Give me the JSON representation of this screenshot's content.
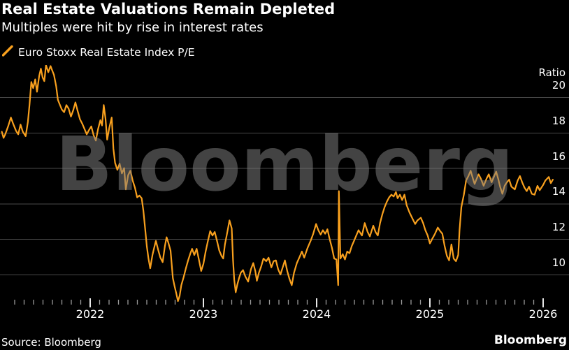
{
  "header": {
    "title": "Real Estate Valuations Remain Depleted",
    "subtitle": "Multiples were hit by rise in interest rates"
  },
  "legend": {
    "series_label": "Euro Stoxx Real Estate Index P/E"
  },
  "watermark": {
    "text": "Bloomberg"
  },
  "footer": {
    "source": "Source: Bloomberg",
    "brand": "Bloomberg"
  },
  "colors": {
    "background": "#000000",
    "text": "#ffffff",
    "line": "#F8A01E",
    "grid": "#4a4a4a",
    "tick_minor": "#9a9a9a",
    "tick_major": "#e8e8e8",
    "watermark": "rgba(128,128,128,0.52)"
  },
  "chart_data": {
    "type": "line",
    "title": "Real Estate Valuations Remain Depleted",
    "subtitle": "Multiples were hit by rise in interest rates",
    "xlabel": "",
    "ylabel": "Ratio",
    "grid": "horizontal",
    "legend_position": "top-left",
    "axis_label_position": "right",
    "y_ticks": [
      20,
      18,
      16,
      14,
      12,
      10
    ],
    "x_ticks_years": [
      2022,
      2023,
      2024,
      2025,
      2026
    ],
    "x_range": [
      2021.2,
      2026.25
    ],
    "y_range": [
      8.3,
      21.81
    ],
    "minor_ticks_monthly": {
      "start": 2021.3333,
      "end": 2025.9167
    },
    "series": [
      {
        "name": "Euro Stoxx Real Estate Index P/E",
        "color": "#F8A01E",
        "points": [
          [
            2021.22,
            18.05
          ],
          [
            2021.235,
            17.7
          ],
          [
            2021.25,
            17.9
          ],
          [
            2021.275,
            18.35
          ],
          [
            2021.3,
            18.85
          ],
          [
            2021.32,
            18.5
          ],
          [
            2021.345,
            18.1
          ],
          [
            2021.365,
            17.9
          ],
          [
            2021.385,
            18.45
          ],
          [
            2021.405,
            18.05
          ],
          [
            2021.43,
            17.8
          ],
          [
            2021.45,
            18.6
          ],
          [
            2021.465,
            19.6
          ],
          [
            2021.48,
            20.85
          ],
          [
            2021.497,
            20.5
          ],
          [
            2021.515,
            21.0
          ],
          [
            2021.53,
            20.3
          ],
          [
            2021.55,
            21.2
          ],
          [
            2021.565,
            21.6
          ],
          [
            2021.58,
            21.1
          ],
          [
            2021.595,
            20.9
          ],
          [
            2021.61,
            21.8
          ],
          [
            2021.63,
            21.4
          ],
          [
            2021.65,
            21.75
          ],
          [
            2021.665,
            21.5
          ],
          [
            2021.68,
            21.25
          ],
          [
            2021.7,
            20.6
          ],
          [
            2021.715,
            19.85
          ],
          [
            2021.73,
            19.6
          ],
          [
            2021.75,
            19.3
          ],
          [
            2021.77,
            19.15
          ],
          [
            2021.79,
            19.55
          ],
          [
            2021.81,
            19.35
          ],
          [
            2021.83,
            18.9
          ],
          [
            2021.85,
            19.25
          ],
          [
            2021.87,
            19.7
          ],
          [
            2021.89,
            19.2
          ],
          [
            2021.91,
            18.75
          ],
          [
            2021.93,
            18.5
          ],
          [
            2021.95,
            18.2
          ],
          [
            2021.97,
            17.9
          ],
          [
            2021.99,
            18.15
          ],
          [
            2022.01,
            18.35
          ],
          [
            2022.03,
            17.85
          ],
          [
            2022.05,
            17.55
          ],
          [
            2022.07,
            18.2
          ],
          [
            2022.09,
            18.7
          ],
          [
            2022.105,
            18.4
          ],
          [
            2022.12,
            19.55
          ],
          [
            2022.135,
            18.8
          ],
          [
            2022.15,
            17.6
          ],
          [
            2022.17,
            18.3
          ],
          [
            2022.19,
            18.85
          ],
          [
            2022.205,
            17.1
          ],
          [
            2022.22,
            16.3
          ],
          [
            2022.24,
            15.9
          ],
          [
            2022.26,
            16.25
          ],
          [
            2022.28,
            15.7
          ],
          [
            2022.3,
            16.0
          ],
          [
            2022.315,
            14.8
          ],
          [
            2022.335,
            15.6
          ],
          [
            2022.355,
            15.85
          ],
          [
            2022.375,
            15.3
          ],
          [
            2022.395,
            14.9
          ],
          [
            2022.415,
            14.35
          ],
          [
            2022.435,
            14.45
          ],
          [
            2022.455,
            14.3
          ],
          [
            2022.47,
            13.6
          ],
          [
            2022.485,
            12.6
          ],
          [
            2022.5,
            11.6
          ],
          [
            2022.515,
            10.9
          ],
          [
            2022.53,
            10.35
          ],
          [
            2022.55,
            11.1
          ],
          [
            2022.565,
            11.5
          ],
          [
            2022.58,
            11.9
          ],
          [
            2022.6,
            11.4
          ],
          [
            2022.62,
            10.95
          ],
          [
            2022.64,
            10.7
          ],
          [
            2022.66,
            11.6
          ],
          [
            2022.675,
            12.1
          ],
          [
            2022.69,
            11.8
          ],
          [
            2022.71,
            11.35
          ],
          [
            2022.73,
            9.8
          ],
          [
            2022.745,
            9.35
          ],
          [
            2022.76,
            8.95
          ],
          [
            2022.775,
            8.5
          ],
          [
            2022.79,
            8.8
          ],
          [
            2022.805,
            9.4
          ],
          [
            2022.825,
            9.85
          ],
          [
            2022.845,
            10.35
          ],
          [
            2022.865,
            10.8
          ],
          [
            2022.885,
            11.2
          ],
          [
            2022.9,
            11.45
          ],
          [
            2022.92,
            11.1
          ],
          [
            2022.94,
            11.45
          ],
          [
            2022.96,
            10.85
          ],
          [
            2022.98,
            10.2
          ],
          [
            2023.0,
            10.6
          ],
          [
            2023.02,
            11.3
          ],
          [
            2023.04,
            11.9
          ],
          [
            2023.06,
            12.45
          ],
          [
            2023.08,
            12.2
          ],
          [
            2023.1,
            12.4
          ],
          [
            2023.12,
            11.9
          ],
          [
            2023.14,
            11.35
          ],
          [
            2023.16,
            11.05
          ],
          [
            2023.175,
            10.9
          ],
          [
            2023.19,
            11.7
          ],
          [
            2023.21,
            12.35
          ],
          [
            2023.23,
            13.05
          ],
          [
            2023.25,
            12.6
          ],
          [
            2023.262,
            10.8
          ],
          [
            2023.272,
            9.7
          ],
          [
            2023.285,
            9.0
          ],
          [
            2023.3,
            9.45
          ],
          [
            2023.315,
            9.8
          ],
          [
            2023.33,
            10.1
          ],
          [
            2023.35,
            10.25
          ],
          [
            2023.37,
            9.9
          ],
          [
            2023.395,
            9.6
          ],
          [
            2023.42,
            10.3
          ],
          [
            2023.44,
            10.65
          ],
          [
            2023.458,
            10.2
          ],
          [
            2023.472,
            9.65
          ],
          [
            2023.49,
            10.1
          ],
          [
            2023.51,
            10.45
          ],
          [
            2023.53,
            10.9
          ],
          [
            2023.555,
            10.75
          ],
          [
            2023.575,
            10.95
          ],
          [
            2023.6,
            10.4
          ],
          [
            2023.62,
            10.75
          ],
          [
            2023.64,
            10.8
          ],
          [
            2023.66,
            10.3
          ],
          [
            2023.68,
            10.0
          ],
          [
            2023.7,
            10.4
          ],
          [
            2023.72,
            10.8
          ],
          [
            2023.74,
            10.2
          ],
          [
            2023.76,
            9.75
          ],
          [
            2023.78,
            9.4
          ],
          [
            2023.8,
            10.1
          ],
          [
            2023.825,
            10.65
          ],
          [
            2023.85,
            11.0
          ],
          [
            2023.87,
            11.3
          ],
          [
            2023.89,
            10.95
          ],
          [
            2023.92,
            11.5
          ],
          [
            2023.95,
            11.95
          ],
          [
            2023.97,
            12.3
          ],
          [
            2023.995,
            12.85
          ],
          [
            2024.015,
            12.5
          ],
          [
            2024.035,
            12.25
          ],
          [
            2024.055,
            12.5
          ],
          [
            2024.075,
            12.3
          ],
          [
            2024.095,
            12.55
          ],
          [
            2024.115,
            12.0
          ],
          [
            2024.135,
            11.5
          ],
          [
            2024.155,
            10.9
          ],
          [
            2024.175,
            10.85
          ],
          [
            2024.19,
            9.4
          ],
          [
            2024.196,
            14.7
          ],
          [
            2024.21,
            10.9
          ],
          [
            2024.23,
            11.15
          ],
          [
            2024.25,
            10.85
          ],
          [
            2024.27,
            11.3
          ],
          [
            2024.29,
            11.2
          ],
          [
            2024.31,
            11.6
          ],
          [
            2024.33,
            11.9
          ],
          [
            2024.35,
            12.2
          ],
          [
            2024.37,
            12.5
          ],
          [
            2024.4,
            12.2
          ],
          [
            2024.425,
            12.9
          ],
          [
            2024.45,
            12.4
          ],
          [
            2024.47,
            12.15
          ],
          [
            2024.5,
            12.75
          ],
          [
            2024.52,
            12.4
          ],
          [
            2024.54,
            12.2
          ],
          [
            2024.56,
            12.9
          ],
          [
            2024.58,
            13.4
          ],
          [
            2024.6,
            13.8
          ],
          [
            2024.62,
            14.1
          ],
          [
            2024.64,
            14.35
          ],
          [
            2024.66,
            14.5
          ],
          [
            2024.68,
            14.4
          ],
          [
            2024.7,
            14.65
          ],
          [
            2024.715,
            14.3
          ],
          [
            2024.735,
            14.5
          ],
          [
            2024.755,
            14.2
          ],
          [
            2024.775,
            14.5
          ],
          [
            2024.795,
            13.9
          ],
          [
            2024.82,
            13.5
          ],
          [
            2024.85,
            13.1
          ],
          [
            2024.87,
            12.85
          ],
          [
            2024.89,
            13.05
          ],
          [
            2024.92,
            13.2
          ],
          [
            2024.94,
            12.9
          ],
          [
            2024.96,
            12.5
          ],
          [
            2024.98,
            12.2
          ],
          [
            2025.0,
            11.75
          ],
          [
            2025.02,
            12.0
          ],
          [
            2025.045,
            12.3
          ],
          [
            2025.07,
            12.65
          ],
          [
            2025.09,
            12.45
          ],
          [
            2025.11,
            12.3
          ],
          [
            2025.13,
            11.6
          ],
          [
            2025.15,
            11.05
          ],
          [
            2025.17,
            10.8
          ],
          [
            2025.19,
            11.7
          ],
          [
            2025.21,
            10.9
          ],
          [
            2025.23,
            10.75
          ],
          [
            2025.25,
            11.1
          ],
          [
            2025.262,
            12.5
          ],
          [
            2025.278,
            13.8
          ],
          [
            2025.3,
            14.5
          ],
          [
            2025.32,
            15.3
          ],
          [
            2025.34,
            15.55
          ],
          [
            2025.36,
            15.85
          ],
          [
            2025.38,
            15.4
          ],
          [
            2025.395,
            15.1
          ],
          [
            2025.41,
            15.35
          ],
          [
            2025.43,
            15.65
          ],
          [
            2025.45,
            15.4
          ],
          [
            2025.475,
            15.0
          ],
          [
            2025.5,
            15.4
          ],
          [
            2025.52,
            15.65
          ],
          [
            2025.545,
            15.2
          ],
          [
            2025.565,
            15.5
          ],
          [
            2025.585,
            15.8
          ],
          [
            2025.605,
            15.35
          ],
          [
            2025.62,
            14.95
          ],
          [
            2025.64,
            14.55
          ],
          [
            2025.66,
            15.0
          ],
          [
            2025.68,
            15.2
          ],
          [
            2025.7,
            15.35
          ],
          [
            2025.72,
            14.95
          ],
          [
            2025.75,
            14.8
          ],
          [
            2025.775,
            15.3
          ],
          [
            2025.795,
            15.55
          ],
          [
            2025.815,
            15.2
          ],
          [
            2025.835,
            14.9
          ],
          [
            2025.855,
            14.7
          ],
          [
            2025.875,
            14.95
          ],
          [
            2025.9,
            14.55
          ],
          [
            2025.925,
            14.5
          ],
          [
            2025.95,
            15.0
          ],
          [
            2025.97,
            14.75
          ],
          [
            2026.0,
            15.05
          ],
          [
            2026.02,
            15.3
          ],
          [
            2026.05,
            15.5
          ],
          [
            2026.068,
            15.15
          ],
          [
            2026.086,
            15.35
          ]
        ]
      }
    ]
  }
}
